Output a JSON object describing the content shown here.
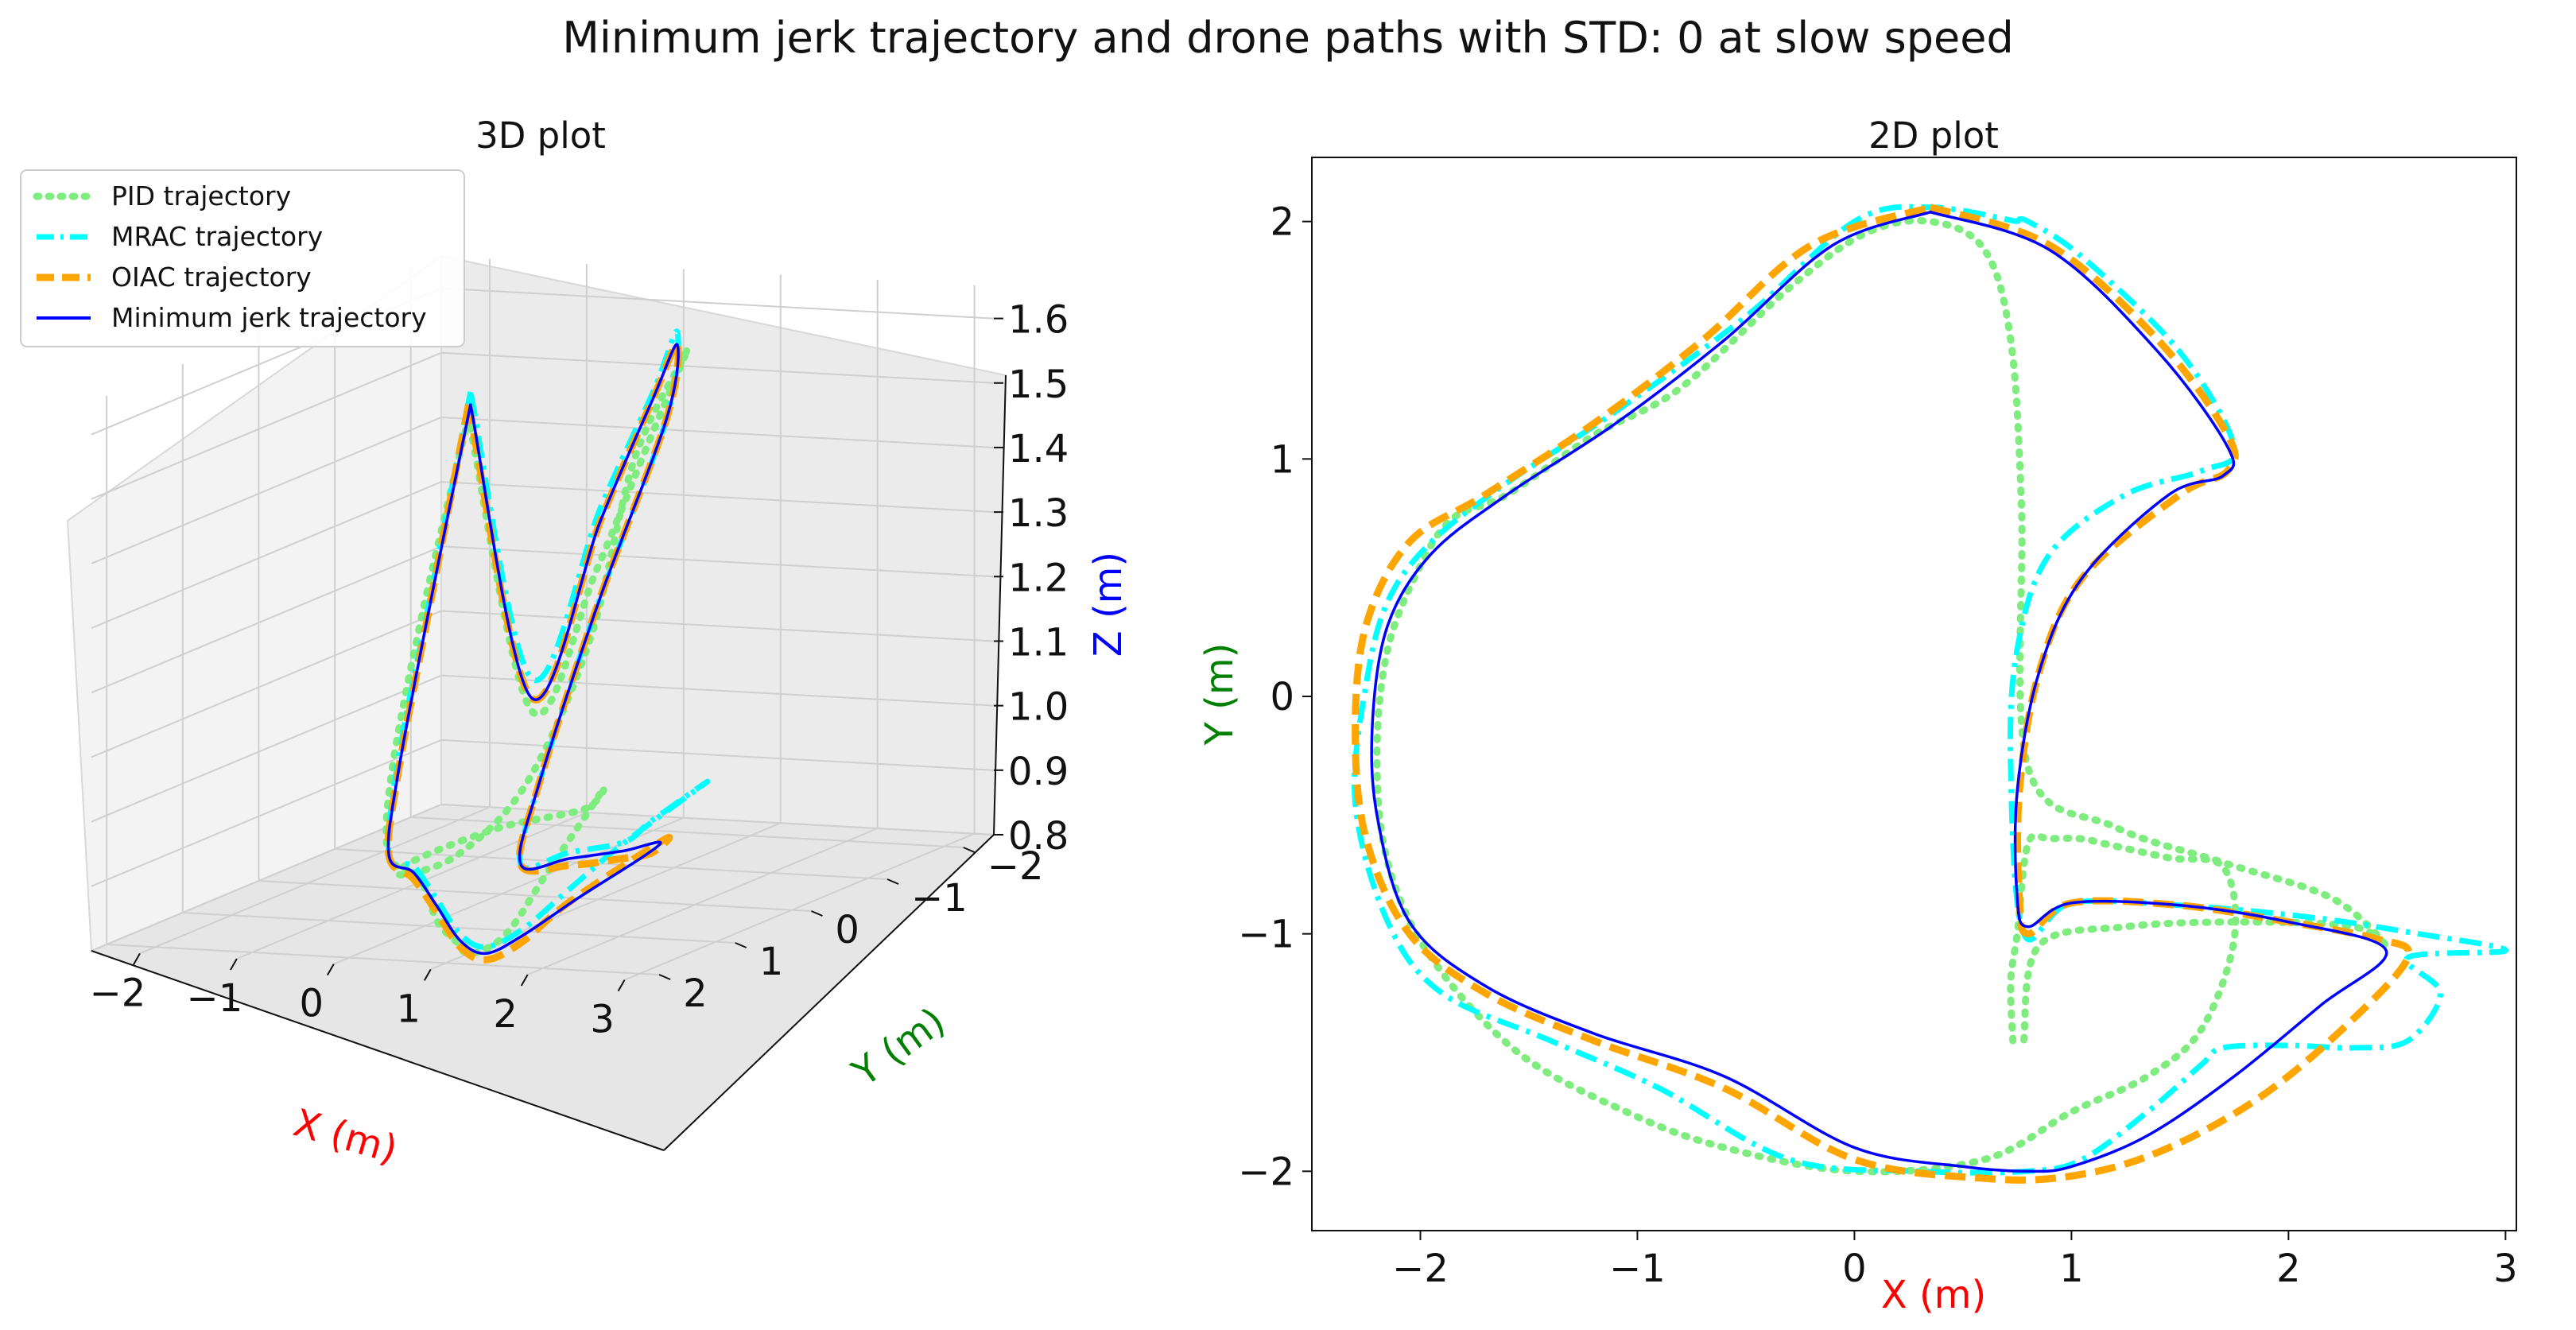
{
  "figure": {
    "suptitle": "Minimum jerk trajectory and drone paths with STD: 0 at slow speed"
  },
  "colors": {
    "pid": "#7fec7f",
    "mrac": "#00ffff",
    "oiac": "#ffa500",
    "minjerk": "#0000ff",
    "x_label": "#ff0000",
    "y_label": "#008000",
    "z_label": "#0000ff"
  },
  "legend": [
    {
      "label": "PID trajectory",
      "style": "dotted",
      "color": "#7fec7f"
    },
    {
      "label": "MRAC trajectory",
      "style": "dashdot",
      "color": "#00ffff"
    },
    {
      "label": "OIAC trajectory",
      "style": "dashed",
      "color": "#ffa500"
    },
    {
      "label": "Minimum jerk trajectory",
      "style": "solid",
      "color": "#0000ff"
    }
  ],
  "chart_data": [
    {
      "type": "line",
      "projection": "3d",
      "title": "3D plot",
      "xlabel": "X (m)",
      "ylabel": "Y (m)",
      "zlabel": "Z (m)",
      "xlim": [
        -2.5,
        3.2
      ],
      "ylim": [
        -2.2,
        2.4
      ],
      "zlim": [
        0.8,
        1.65
      ],
      "xticks": [
        "−2",
        "−1",
        "0",
        "1",
        "2",
        "3"
      ],
      "yticks": [
        "−2",
        "−1",
        "0",
        "1",
        "2"
      ],
      "zticks": [
        "0.8",
        "0.9",
        "1.0",
        "1.1",
        "1.2",
        "1.3",
        "1.4",
        "1.5",
        "1.6"
      ],
      "legend_position": "upper-left",
      "series": [
        {
          "name": "PID trajectory",
          "x": [
            -1.12,
            -1.0,
            -0.78,
            -0.45,
            0.02,
            0.28,
            0.58,
            1.02,
            1.62,
            2.05,
            2.18,
            1.72,
            0.65,
            -0.12,
            -0.2,
            0.15,
            0.62,
            0.88,
            0.9,
            1.0,
            0.55,
            -0.05,
            -0.55,
            -0.9,
            -1.12
          ],
          "y": [
            1.0,
            0.25,
            -0.45,
            -0.9,
            -1.1,
            -1.2,
            -1.35,
            -1.7,
            -2.0,
            -2.0,
            -1.45,
            -1.1,
            -0.85,
            -0.98,
            -1.05,
            -0.75,
            -0.45,
            0.05,
            0.6,
            1.1,
            1.7,
            2.0,
            1.95,
            1.55,
            1.0
          ],
          "z": [
            1.48,
            1.22,
            1.0,
            0.9,
            0.88,
            0.82,
            0.8,
            0.8,
            0.85,
            0.95,
            1.05,
            1.0,
            0.95,
            0.9,
            0.88,
            0.9,
            1.0,
            1.2,
            1.45,
            1.58,
            1.55,
            1.4,
            1.2,
            1.0,
            1.48
          ]
        },
        {
          "name": "MRAC trajectory",
          "x": [
            -1.1,
            -0.95,
            -0.75,
            -0.45,
            0.0,
            0.35,
            0.8,
            1.3,
            1.8,
            2.2,
            2.55,
            2.95,
            2.6,
            2.1,
            1.4,
            0.95,
            0.78,
            0.85,
            1.0,
            0.6,
            0.0,
            -0.5,
            -0.9,
            -1.1
          ],
          "y": [
            1.0,
            0.3,
            -0.4,
            -0.9,
            -1.15,
            -1.3,
            -1.55,
            -1.85,
            -2.0,
            -1.9,
            -1.65,
            -1.05,
            -1.35,
            -1.05,
            -0.9,
            -0.95,
            -0.5,
            0.2,
            0.9,
            1.55,
            2.0,
            1.95,
            1.55,
            1.0
          ],
          "z": [
            1.52,
            1.25,
            1.02,
            0.9,
            0.9,
            0.86,
            0.82,
            0.82,
            0.86,
            0.92,
            0.98,
            1.05,
            1.0,
            0.95,
            0.92,
            0.9,
            1.0,
            1.25,
            1.5,
            1.6,
            1.48,
            1.3,
            1.05,
            1.52
          ]
        },
        {
          "name": "OIAC trajectory",
          "x": [
            -1.12,
            -0.95,
            -0.75,
            -0.45,
            0.0,
            0.35,
            0.8,
            1.3,
            1.8,
            2.2,
            2.55,
            2.45,
            2.0,
            1.4,
            0.95,
            0.78,
            0.85,
            1.0,
            0.6,
            0.0,
            -0.5,
            -0.9,
            -1.12
          ],
          "y": [
            1.0,
            0.3,
            -0.4,
            -0.9,
            -1.15,
            -1.3,
            -1.55,
            -1.85,
            -2.02,
            -1.9,
            -1.1,
            -1.15,
            -1.0,
            -0.9,
            -0.95,
            -0.5,
            0.2,
            0.9,
            1.55,
            2.0,
            1.95,
            1.55,
            1.0
          ],
          "z": [
            1.5,
            1.24,
            1.0,
            0.9,
            0.88,
            0.84,
            0.8,
            0.8,
            0.84,
            0.9,
            0.96,
            0.94,
            0.92,
            0.9,
            0.9,
            1.0,
            1.25,
            1.5,
            1.58,
            1.47,
            1.28,
            1.02,
            1.5
          ]
        },
        {
          "name": "Minimum jerk trajectory",
          "x": [
            -1.1,
            -0.95,
            -0.75,
            -0.45,
            0.0,
            0.35,
            0.8,
            1.3,
            1.8,
            2.2,
            2.48,
            2.0,
            1.4,
            0.95,
            0.78,
            0.85,
            1.0,
            0.6,
            0.0,
            -0.5,
            -0.9,
            -1.1
          ],
          "y": [
            1.0,
            0.3,
            -0.4,
            -0.9,
            -1.15,
            -1.3,
            -1.55,
            -1.85,
            -2.0,
            -1.8,
            -1.08,
            -0.95,
            -0.88,
            -0.95,
            -0.5,
            0.2,
            0.9,
            1.55,
            2.0,
            1.95,
            1.55,
            1.0
          ],
          "z": [
            1.5,
            1.24,
            1.0,
            0.9,
            0.89,
            0.85,
            0.81,
            0.81,
            0.85,
            0.9,
            0.95,
            0.93,
            0.91,
            0.9,
            1.0,
            1.25,
            1.5,
            1.58,
            1.47,
            1.28,
            1.02,
            1.5
          ]
        }
      ]
    },
    {
      "type": "line",
      "title": "2D plot",
      "xlabel": "X (m)",
      "ylabel": "Y (m)",
      "xlim": [
        -2.5,
        3.05
      ],
      "ylim": [
        -2.25,
        2.27
      ],
      "xticks": [
        -2,
        -1,
        0,
        1,
        2,
        3
      ],
      "yticks": [
        -2,
        -1,
        0,
        1,
        2
      ],
      "xtick_labels": [
        "−2",
        "−1",
        "0",
        "1",
        "2",
        "3"
      ],
      "ytick_labels": [
        "−2",
        "−1",
        "0",
        "1",
        "2"
      ],
      "series": [
        {
          "name": "PID trajectory",
          "x": [
            0.73,
            0.72,
            0.75,
            0.8,
            0.9,
            1.05,
            1.15,
            1.45,
            1.7,
            1.75,
            1.6,
            1.35,
            1.0,
            0.6,
            0.0,
            -0.6,
            -1.05,
            -1.55,
            -1.95,
            -2.15,
            -2.2,
            -2.15,
            -2.0,
            -1.85,
            -1.6,
            -1.2,
            -0.8,
            -0.3,
            0.05,
            0.35,
            0.6,
            0.72,
            0.77,
            0.8,
            1.2,
            1.7,
            2.2,
            2.45,
            2.3,
            1.8,
            1.25,
            0.85,
            0.78
          ],
          "y": [
            -1.45,
            -1.2,
            -1.0,
            -0.62,
            -0.6,
            -0.6,
            -0.62,
            -0.68,
            -0.72,
            -1.02,
            -1.4,
            -1.6,
            -1.75,
            -1.95,
            -2.0,
            -1.9,
            -1.75,
            -1.5,
            -1.1,
            -0.7,
            -0.25,
            0.2,
            0.55,
            0.75,
            0.85,
            1.1,
            1.3,
            1.72,
            1.95,
            2.0,
            1.88,
            1.5,
            0.8,
            -0.3,
            -0.55,
            -0.7,
            -0.85,
            -1.05,
            -0.97,
            -0.95,
            -0.97,
            -1.05,
            -1.45
          ]
        },
        {
          "name": "MRAC trajectory",
          "x": [
            0.75,
            0.8,
            1.05,
            1.5,
            1.75,
            1.6,
            1.25,
            0.9,
            0.75,
            0.72,
            0.78,
            1.0,
            1.5,
            2.1,
            2.6,
            3.0,
            2.55,
            2.7,
            2.55,
            2.3,
            2.0,
            1.7,
            1.6,
            1.35,
            1.05,
            0.8,
            0.3,
            -0.3,
            -0.9,
            -1.4,
            -1.9,
            -2.15,
            -2.3,
            -2.25,
            -2.15,
            -1.95,
            -1.6,
            -1.1,
            -0.5,
            0.0,
            0.35,
            0.75
          ],
          "y": [
            2.0,
            2.0,
            1.85,
            1.45,
            1.05,
            0.95,
            0.85,
            0.6,
            0.2,
            -0.3,
            -1.0,
            -0.87,
            -0.88,
            -0.93,
            -1.0,
            -1.07,
            -1.1,
            -1.25,
            -1.45,
            -1.48,
            -1.47,
            -1.48,
            -1.55,
            -1.75,
            -1.95,
            -2.0,
            -2.0,
            -1.95,
            -1.65,
            -1.45,
            -1.25,
            -0.95,
            -0.45,
            0.05,
            0.4,
            0.65,
            0.9,
            1.2,
            1.6,
            2.0,
            2.06,
            2.0
          ]
        },
        {
          "name": "OIAC trajectory",
          "x": [
            0.35,
            0.9,
            1.4,
            1.72,
            1.72,
            1.5,
            1.05,
            0.85,
            0.76,
            0.76,
            0.8,
            1.0,
            1.5,
            2.0,
            2.4,
            2.55,
            2.25,
            1.85,
            1.4,
            1.0,
            0.6,
            0.0,
            -0.6,
            -1.2,
            -1.7,
            -2.05,
            -2.25,
            -2.3,
            -2.25,
            -2.05,
            -1.7,
            -1.2,
            -0.7,
            -0.2,
            0.35
          ],
          "y": [
            2.06,
            1.9,
            1.5,
            1.1,
            0.95,
            0.85,
            0.5,
            0.1,
            -0.4,
            -0.85,
            -1.0,
            -0.87,
            -0.88,
            -0.95,
            -1.02,
            -1.1,
            -1.4,
            -1.7,
            -1.92,
            -2.02,
            -2.03,
            -1.95,
            -1.65,
            -1.45,
            -1.25,
            -1.0,
            -0.6,
            -0.15,
            0.3,
            0.65,
            0.85,
            1.15,
            1.5,
            1.9,
            2.06
          ]
        },
        {
          "name": "Minimum jerk trajectory",
          "x": [
            0.35,
            0.9,
            1.4,
            1.72,
            1.7,
            1.45,
            1.05,
            0.85,
            0.75,
            0.75,
            0.8,
            1.0,
            1.5,
            2.0,
            2.45,
            2.15,
            1.75,
            1.35,
            1.0,
            0.8,
            0.5,
            0.0,
            -0.6,
            -1.2,
            -1.7,
            -2.05,
            -2.2,
            -2.22,
            -2.15,
            -1.95,
            -1.6,
            -1.1,
            -0.6,
            -0.1,
            0.35
          ],
          "y": [
            2.04,
            1.88,
            1.45,
            1.05,
            0.93,
            0.85,
            0.5,
            0.1,
            -0.4,
            -0.85,
            -0.97,
            -0.87,
            -0.88,
            -0.95,
            -1.07,
            -1.3,
            -1.6,
            -1.85,
            -1.98,
            -2.0,
            -1.98,
            -1.9,
            -1.6,
            -1.42,
            -1.22,
            -0.95,
            -0.5,
            -0.1,
            0.3,
            0.6,
            0.85,
            1.15,
            1.5,
            1.9,
            2.04
          ]
        }
      ]
    }
  ]
}
